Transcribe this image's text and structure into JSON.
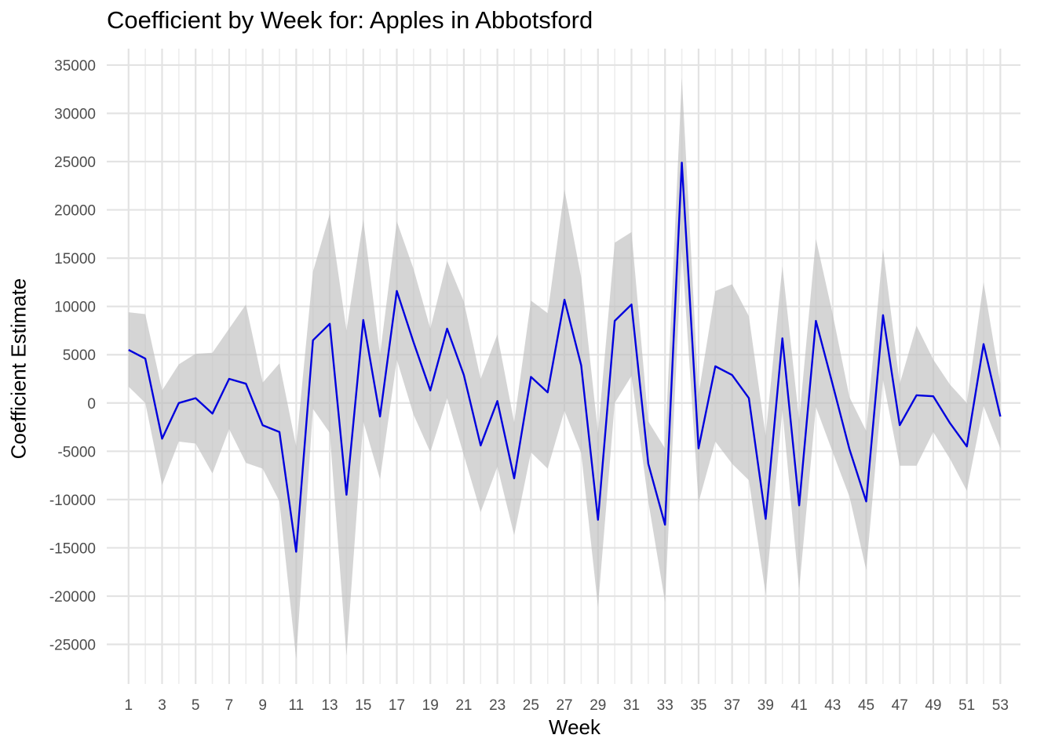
{
  "chart_data": {
    "type": "line",
    "title": "Coefficient by Week for: Apples in Abbotsford",
    "xlabel": "Week",
    "ylabel": "Coefficient Estimate",
    "x": [
      1,
      2,
      3,
      4,
      5,
      6,
      7,
      8,
      9,
      10,
      11,
      12,
      13,
      14,
      15,
      16,
      17,
      18,
      19,
      20,
      21,
      22,
      23,
      24,
      25,
      26,
      27,
      28,
      29,
      30,
      31,
      32,
      33,
      34,
      35,
      36,
      37,
      38,
      39,
      40,
      41,
      42,
      43,
      44,
      45,
      46,
      47,
      48,
      49,
      50,
      51,
      52,
      53
    ],
    "xticks": [
      1,
      3,
      5,
      7,
      9,
      11,
      13,
      15,
      17,
      19,
      21,
      23,
      25,
      27,
      29,
      31,
      33,
      35,
      37,
      39,
      41,
      43,
      45,
      47,
      49,
      51,
      53
    ],
    "yticks": [
      -25000,
      -20000,
      -15000,
      -10000,
      -5000,
      0,
      5000,
      10000,
      15000,
      20000,
      25000,
      30000,
      35000
    ],
    "xlim": [
      -0.3,
      54.2
    ],
    "ylim": [
      -29100,
      36700
    ],
    "grid": true,
    "series": [
      {
        "values": [
          5500,
          4600,
          -3700,
          0,
          500,
          -1100,
          2500,
          2000,
          -2300,
          -3000,
          -15400,
          6500,
          8200,
          -9500,
          8600,
          -1400,
          11600,
          6300,
          1300,
          7700,
          2900,
          -4400,
          200,
          -7800,
          2700,
          1100,
          10700,
          3900,
          -12100,
          8500,
          10200,
          -6300,
          -12600,
          24900,
          -4700,
          3800,
          2900,
          500,
          -12000,
          6700,
          -10600,
          8500,
          1900,
          -4800,
          -10200,
          9100,
          -2300,
          800,
          700,
          -2100,
          -4500,
          6100,
          -1400
        ],
        "lower": [
          1700,
          0,
          -8500,
          -4000,
          -4200,
          -7300,
          -2700,
          -6200,
          -6800,
          -10200,
          -26500,
          -600,
          -3100,
          -26200,
          -1900,
          -7900,
          4500,
          -1200,
          -5100,
          500,
          -5400,
          -11300,
          -6600,
          -13700,
          -5100,
          -6800,
          -800,
          -5200,
          -21100,
          0,
          2800,
          -10200,
          -20600,
          16000,
          -10300,
          -4000,
          -6300,
          -8000,
          -19800,
          -700,
          -19300,
          -400,
          -5100,
          -9700,
          -17300,
          2400,
          -6500,
          -6500,
          -3000,
          -5800,
          -9100,
          -300,
          -4700
        ],
        "upper": [
          9400,
          9200,
          1300,
          4000,
          5100,
          5200,
          7700,
          10200,
          2100,
          4100,
          -4500,
          13600,
          19600,
          7500,
          19000,
          5000,
          18800,
          13900,
          7700,
          14700,
          10500,
          2500,
          7100,
          -2000,
          10600,
          9300,
          22100,
          13000,
          -3100,
          16600,
          17700,
          -1900,
          -4700,
          33700,
          900,
          11600,
          12300,
          9000,
          -3400,
          14200,
          -1800,
          17000,
          9200,
          600,
          -2900,
          16000,
          2000,
          8000,
          4500,
          1900,
          0,
          12500,
          2000
        ],
        "color": "#0000dd",
        "band_color": "#bebebe"
      }
    ]
  }
}
